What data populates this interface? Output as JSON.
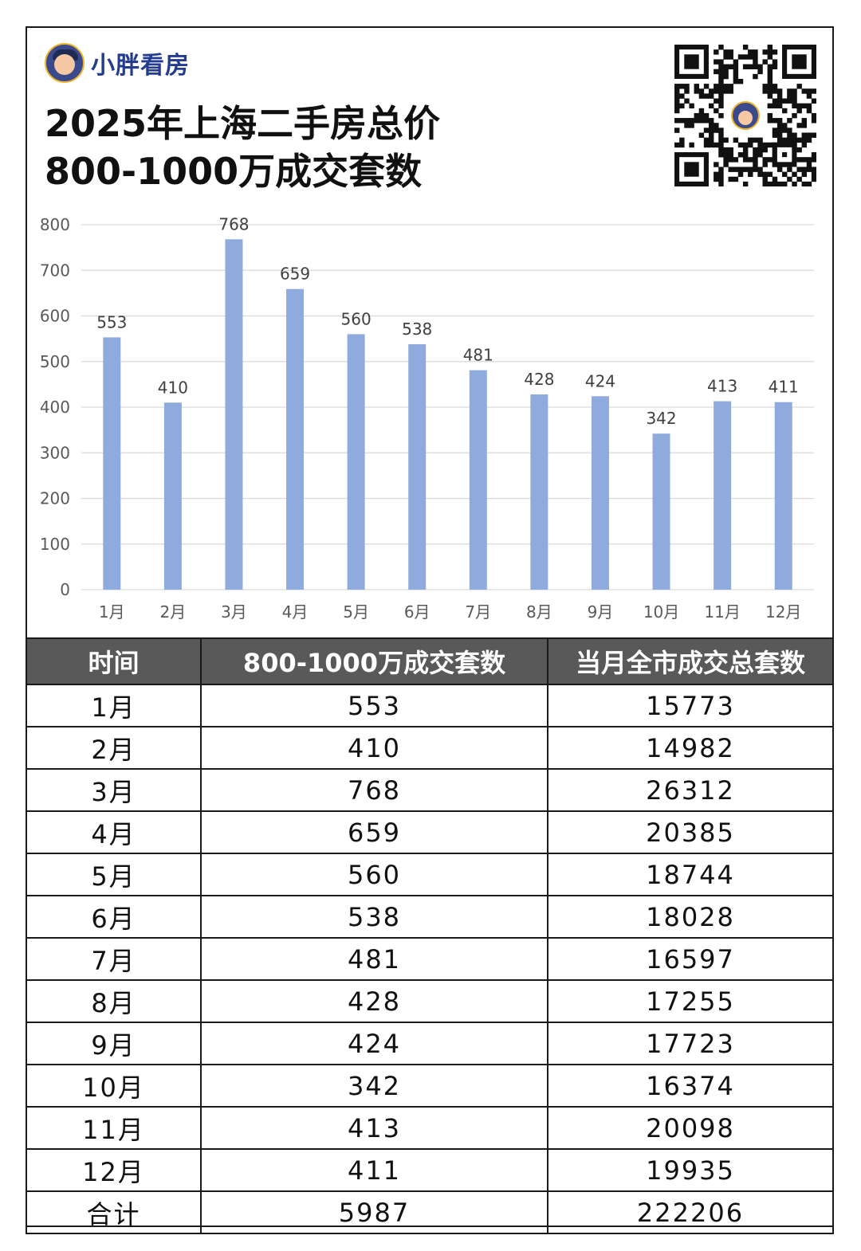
{
  "brand": {
    "name": "小胖看房"
  },
  "title": {
    "line1": "2025年上海二手房总价",
    "line2": "800-1000万成交套数"
  },
  "colors": {
    "bar": "#8faadc",
    "header_bg": "#595959",
    "brand": "#243c8f"
  },
  "chart_data": {
    "type": "bar",
    "categories": [
      "1月",
      "2月",
      "3月",
      "4月",
      "5月",
      "6月",
      "7月",
      "8月",
      "9月",
      "10月",
      "11月",
      "12月"
    ],
    "values": [
      553,
      410,
      768,
      659,
      560,
      538,
      481,
      428,
      424,
      342,
      413,
      411
    ],
    "ylim": [
      0,
      800
    ],
    "yticks": [
      0,
      100,
      200,
      300,
      400,
      500,
      600,
      700,
      800
    ],
    "grid": true
  },
  "table": {
    "headers": [
      "时间",
      "800-1000万成交套数",
      "当月全市成交总套数"
    ],
    "rows": [
      [
        "1月",
        "553",
        "15773"
      ],
      [
        "2月",
        "410",
        "14982"
      ],
      [
        "3月",
        "768",
        "26312"
      ],
      [
        "4月",
        "659",
        "20385"
      ],
      [
        "5月",
        "560",
        "18744"
      ],
      [
        "6月",
        "538",
        "18028"
      ],
      [
        "7月",
        "481",
        "16597"
      ],
      [
        "8月",
        "428",
        "17255"
      ],
      [
        "9月",
        "424",
        "17723"
      ],
      [
        "10月",
        "342",
        "16374"
      ],
      [
        "11月",
        "413",
        "20098"
      ],
      [
        "12月",
        "411",
        "19935"
      ],
      [
        "合计",
        "5987",
        "222206"
      ]
    ]
  }
}
